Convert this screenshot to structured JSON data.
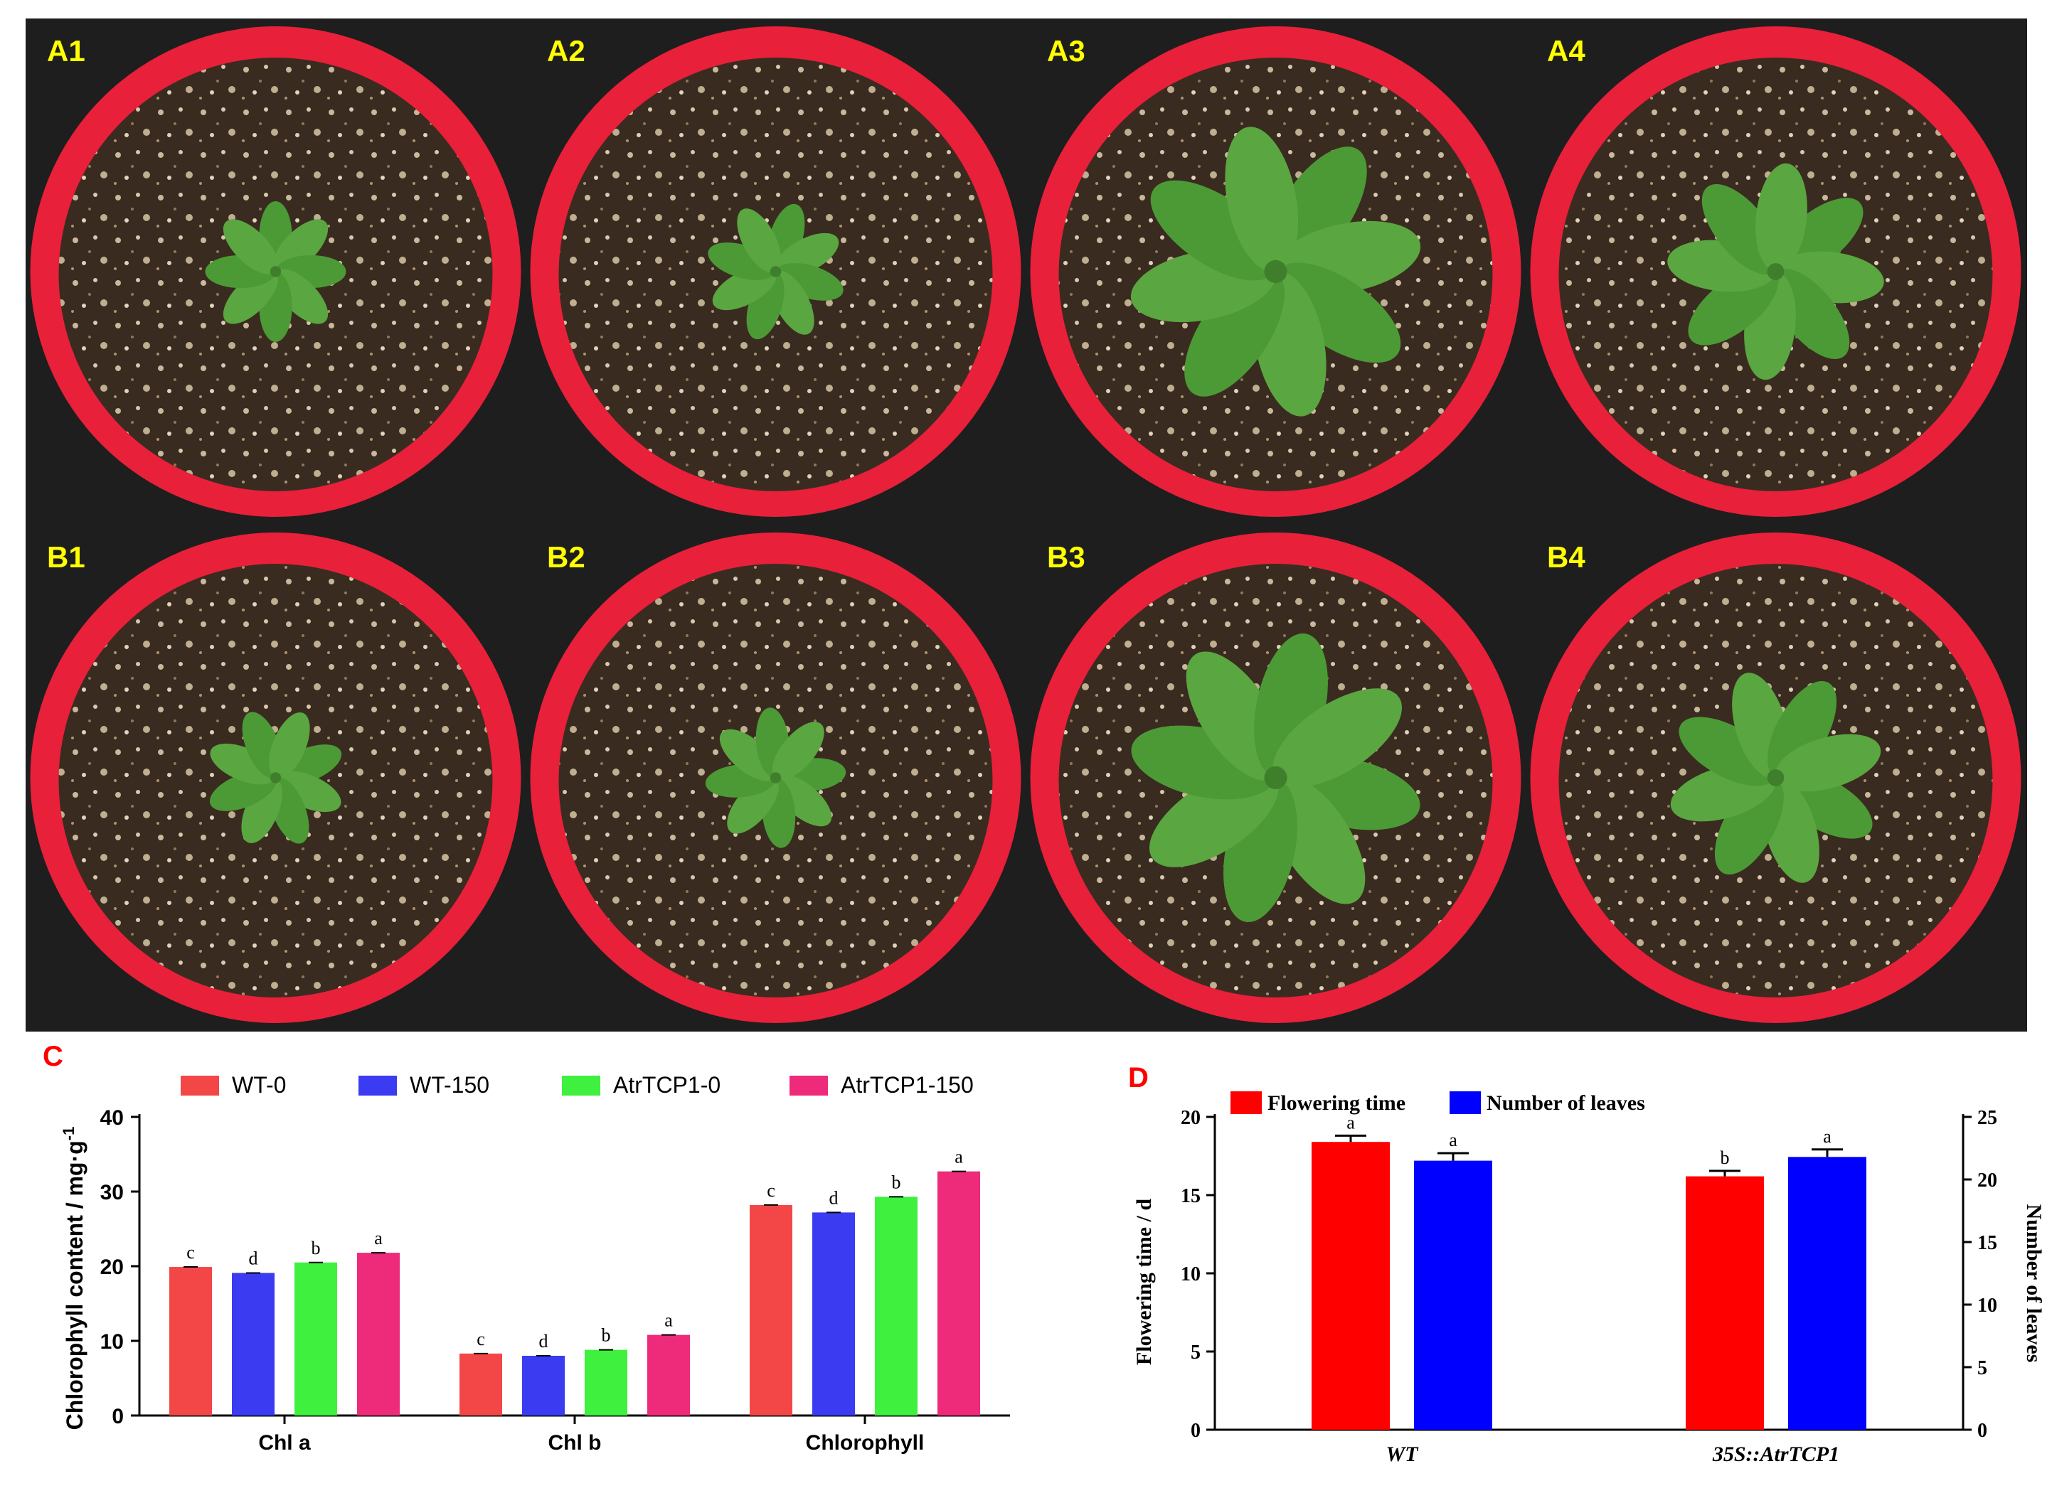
{
  "photos": {
    "panels": [
      {
        "label": "A1",
        "plant_size": "small"
      },
      {
        "label": "A2",
        "plant_size": "small"
      },
      {
        "label": "A3",
        "plant_size": "large"
      },
      {
        "label": "A4",
        "plant_size": "medium"
      },
      {
        "label": "B1",
        "plant_size": "small"
      },
      {
        "label": "B2",
        "plant_size": "small"
      },
      {
        "label": "B3",
        "plant_size": "large"
      },
      {
        "label": "B4",
        "plant_size": "medium"
      }
    ],
    "label_color": "#ffff00",
    "pot_color": "#e8203a",
    "soil_color": "#3a2b20"
  },
  "chart_data": [
    {
      "type": "bar",
      "panel_label": "C",
      "panel_label_color": "#ff0000",
      "ylabel": "Chlorophyll content / mg·g",
      "ylabel_sup": "-1",
      "ylim": [
        0,
        40
      ],
      "yticks": [
        0,
        10,
        20,
        30,
        40
      ],
      "categories": [
        "Chl a",
        "Chl b",
        "Chlorophyll"
      ],
      "legend_position": "top",
      "series": [
        {
          "name": "WT-0",
          "color": "#f34747",
          "values": [
            19.9,
            8.3,
            28.2
          ],
          "letters": [
            "c",
            "c",
            "c"
          ]
        },
        {
          "name": "WT-150",
          "color": "#3b3bf2",
          "values": [
            19.1,
            8.0,
            27.2
          ],
          "letters": [
            "d",
            "d",
            "d"
          ]
        },
        {
          "name": "AtrTCP1-0",
          "color": "#3ff03f",
          "values": [
            20.5,
            8.8,
            29.3
          ],
          "letters": [
            "b",
            "b",
            "b"
          ]
        },
        {
          "name": "AtrTCP1-150",
          "color": "#ee2a7b",
          "values": [
            21.8,
            10.8,
            32.7
          ],
          "letters": [
            "a",
            "a",
            "a"
          ]
        }
      ]
    },
    {
      "type": "bar",
      "panel_label": "D",
      "panel_label_color": "#ff0000",
      "ylabel": "Flowering time / d",
      "ylabel_right": "Number of leaves",
      "ylim": [
        0,
        20
      ],
      "yticks": [
        0,
        5,
        10,
        15,
        20
      ],
      "ylim_right": [
        0,
        25
      ],
      "yticks_right": [
        0,
        5,
        10,
        15,
        20,
        25
      ],
      "categories": [
        "WT",
        "35S::AtrTCP1"
      ],
      "legend_position": "top",
      "series": [
        {
          "name": "Flowering time",
          "axis": "left",
          "color": "#ff0000",
          "values": [
            18.4,
            16.2
          ],
          "errors": [
            0.4,
            0.35
          ],
          "letters": [
            "a",
            "b"
          ]
        },
        {
          "name": "Number of leaves",
          "axis": "right",
          "color": "#0000ff",
          "values": [
            21.5,
            21.8
          ],
          "errors": [
            0.6,
            0.6
          ],
          "letters": [
            "a",
            "a"
          ]
        }
      ]
    }
  ]
}
